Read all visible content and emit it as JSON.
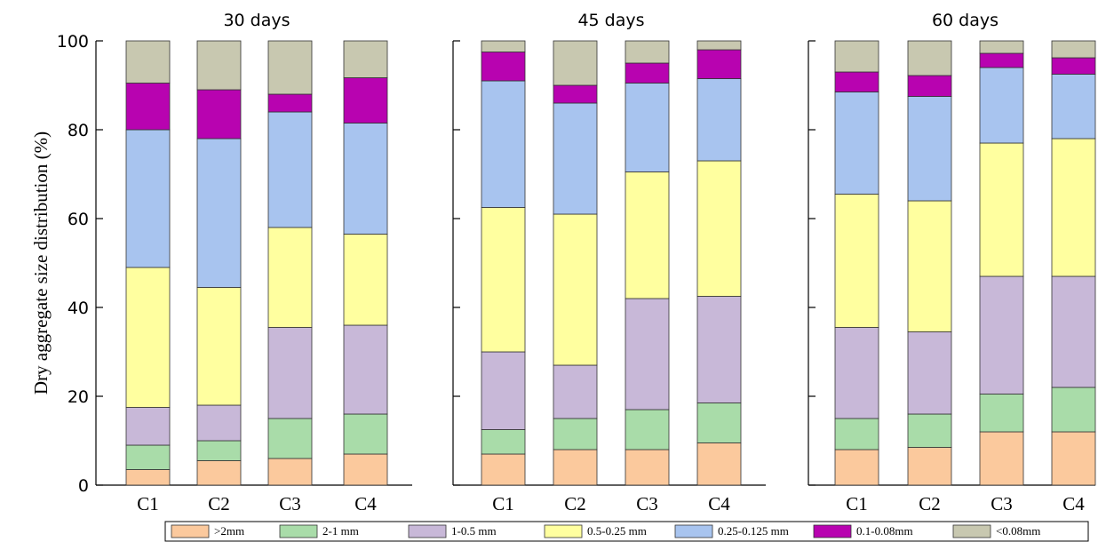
{
  "chart_data": {
    "type": "bar",
    "stacked": true,
    "ylabel": "Dry aggregate size distribution (%)",
    "ylim": [
      0,
      100
    ],
    "yticks": [
      "0",
      "20",
      "40",
      "60",
      "80",
      "100"
    ],
    "categories": [
      "C1",
      "C2",
      "C3",
      "C4"
    ],
    "legend_position": "bottom",
    "series": [
      {
        "name": ">2mm",
        "color": "#fbc99d"
      },
      {
        "name": "2-1 mm",
        "color": "#a9dca9"
      },
      {
        "name": "1-0.5 mm",
        "color": "#c8b8d8"
      },
      {
        "name": "0.5-0.25 mm",
        "color": "#ffff9f"
      },
      {
        "name": "0.25-0.125 mm",
        "color": "#a8c4ef"
      },
      {
        "name": "0.1-0.08mm",
        "color": "#b803b0"
      },
      {
        "name": "<0.08mm",
        "color": "#c8c8b0"
      }
    ],
    "panels": [
      {
        "title": "30 days",
        "stacks": [
          [
            3.5,
            5.5,
            8.5,
            31.5,
            31,
            10.5,
            9.5
          ],
          [
            5.5,
            4.5,
            8,
            26.5,
            33.5,
            11,
            11
          ],
          [
            6,
            9,
            20.5,
            22.5,
            26,
            4,
            12
          ],
          [
            7,
            9,
            20,
            20.5,
            25,
            10.2,
            8.3
          ]
        ]
      },
      {
        "title": "45 days",
        "stacks": [
          [
            7,
            5.5,
            17.5,
            32.5,
            28.5,
            6.5,
            2.5
          ],
          [
            8,
            7,
            12,
            34,
            25,
            4,
            10
          ],
          [
            8,
            9,
            25,
            28.5,
            20,
            4.5,
            5
          ],
          [
            9.5,
            9,
            24,
            30.5,
            18.5,
            6.5,
            2
          ]
        ]
      },
      {
        "title": "60 days",
        "stacks": [
          [
            8,
            7,
            20.5,
            30,
            23,
            4.5,
            7
          ],
          [
            8.5,
            7.5,
            18.5,
            29.5,
            23.5,
            4.7,
            7.8
          ],
          [
            12,
            8.5,
            26.5,
            30,
            17,
            3.2,
            2.8
          ],
          [
            12,
            10,
            25,
            31,
            14.5,
            3.7,
            3.8
          ]
        ]
      }
    ]
  }
}
